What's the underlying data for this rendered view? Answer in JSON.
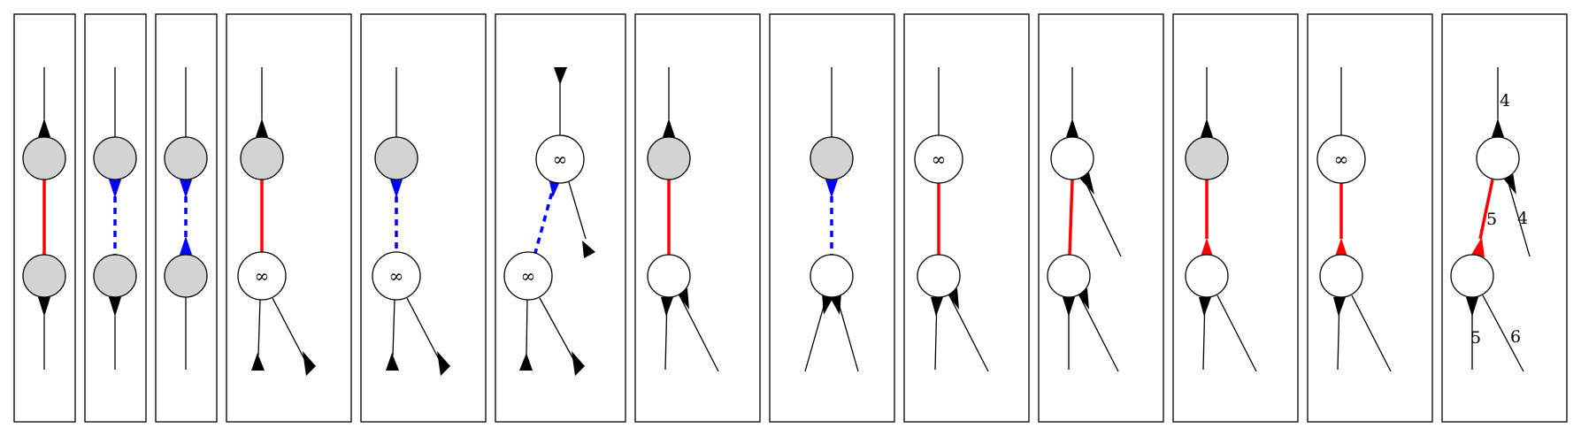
{
  "panels": [
    {
      "id": "p1",
      "node_symbols": [],
      "edge_labels": []
    },
    {
      "id": "p2",
      "node_symbols": [],
      "edge_labels": []
    },
    {
      "id": "p3",
      "node_symbols": [],
      "edge_labels": []
    },
    {
      "id": "p4",
      "node_symbols": [
        "∞"
      ],
      "edge_labels": []
    },
    {
      "id": "p5",
      "node_symbols": [
        "∞"
      ],
      "edge_labels": []
    },
    {
      "id": "p6",
      "node_symbols": [
        "∞",
        "∞"
      ],
      "edge_labels": []
    },
    {
      "id": "p7",
      "node_symbols": [],
      "edge_labels": []
    },
    {
      "id": "p8",
      "node_symbols": [],
      "edge_labels": []
    },
    {
      "id": "p9",
      "node_symbols": [
        "∞"
      ],
      "edge_labels": []
    },
    {
      "id": "p10",
      "node_symbols": [],
      "edge_labels": []
    },
    {
      "id": "p11",
      "node_symbols": [],
      "edge_labels": []
    },
    {
      "id": "p12",
      "node_symbols": [
        "∞"
      ],
      "edge_labels": []
    },
    {
      "id": "p13",
      "node_symbols": [],
      "edge_labels": [
        "4",
        "5",
        "4",
        "5",
        "6"
      ]
    }
  ],
  "colors": {
    "frame": "#000000",
    "node_fill_gray": "#d3d3d3",
    "node_fill_white": "#ffffff",
    "edge_red": "#ff0000",
    "edge_blue": "#0000ff",
    "arrow_black": "#000000"
  }
}
